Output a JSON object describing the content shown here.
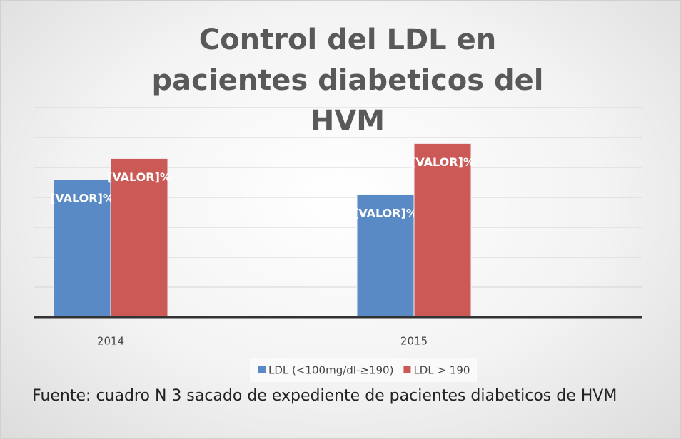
{
  "chart_data": {
    "type": "bar",
    "title": "Control del LDL en pacientes diabeticos del HVM",
    "categories": [
      "2014",
      "2015"
    ],
    "series": [
      {
        "name": "LDL (<100mg/dl-≥190)",
        "color": "#5a8ac6",
        "values": [
          46,
          41
        ],
        "value_labels": [
          "[VALOR]%",
          "[VALOR]%"
        ]
      },
      {
        "name": "LDL > 190",
        "color": "#cb5a57",
        "values": [
          53,
          58
        ],
        "value_labels": [
          "[VALOR]%",
          "[VALOR]%"
        ]
      }
    ],
    "ylim": [
      0,
      70
    ],
    "yticks": [
      0,
      10,
      20,
      30,
      40,
      50,
      60,
      70
    ],
    "grid": true,
    "note": "Fuente: cuadro N 3 sacado de expediente de pacientes diabeticos de HVM"
  }
}
